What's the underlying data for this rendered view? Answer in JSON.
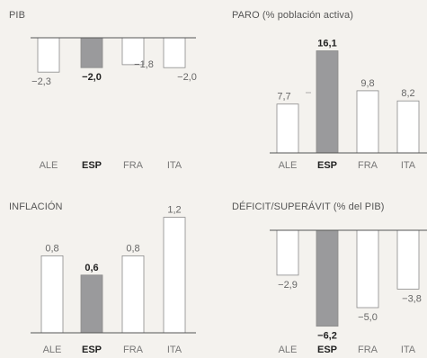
{
  "highlight_category": "ESP",
  "colors": {
    "bar": "#ffffff",
    "highlight_bar": "#9a9a9c",
    "axis": "#555555",
    "background": "#f4f2ee"
  },
  "chart_data": [
    {
      "type": "bar",
      "title": "PIB",
      "categories": [
        "ALE",
        "ESP",
        "FRA",
        "ITA"
      ],
      "values": [
        -2.3,
        -2.0,
        -1.8,
        -2.0
      ],
      "labels": [
        "−2,3",
        "−2,0",
        "−1,8",
        "−2,0"
      ],
      "baseline": "top",
      "xlabel": "",
      "ylabel": "",
      "grid": false
    },
    {
      "type": "bar",
      "title": "PARO (% población activa)",
      "categories": [
        "ALE",
        "ESP",
        "FRA",
        "ITA"
      ],
      "values": [
        7.7,
        16.1,
        9.8,
        8.2
      ],
      "labels": [
        "7,7",
        "16,1",
        "9,8",
        "8,2"
      ],
      "baseline": "bottom",
      "xlabel": "",
      "ylabel": "",
      "grid": false
    },
    {
      "type": "bar",
      "title": "INFLACIÓN",
      "categories": [
        "ALE",
        "ESP",
        "FRA",
        "ITA"
      ],
      "values": [
        0.8,
        0.6,
        0.8,
        1.2
      ],
      "labels": [
        "0,8",
        "0,6",
        "0,8",
        "1,2"
      ],
      "baseline": "bottom",
      "xlabel": "",
      "ylabel": "",
      "grid": false
    },
    {
      "type": "bar",
      "title": "DÉFICIT/SUPERÁVIT (% del PIB)",
      "categories": [
        "ALE",
        "ESP",
        "FRA",
        "ITA"
      ],
      "values": [
        -2.9,
        -6.2,
        -5.0,
        -3.8
      ],
      "labels": [
        "−2,9",
        "−6,2",
        "−5,0",
        "−3,8"
      ],
      "baseline": "top",
      "xlabel": "",
      "ylabel": "",
      "grid": false
    }
  ]
}
